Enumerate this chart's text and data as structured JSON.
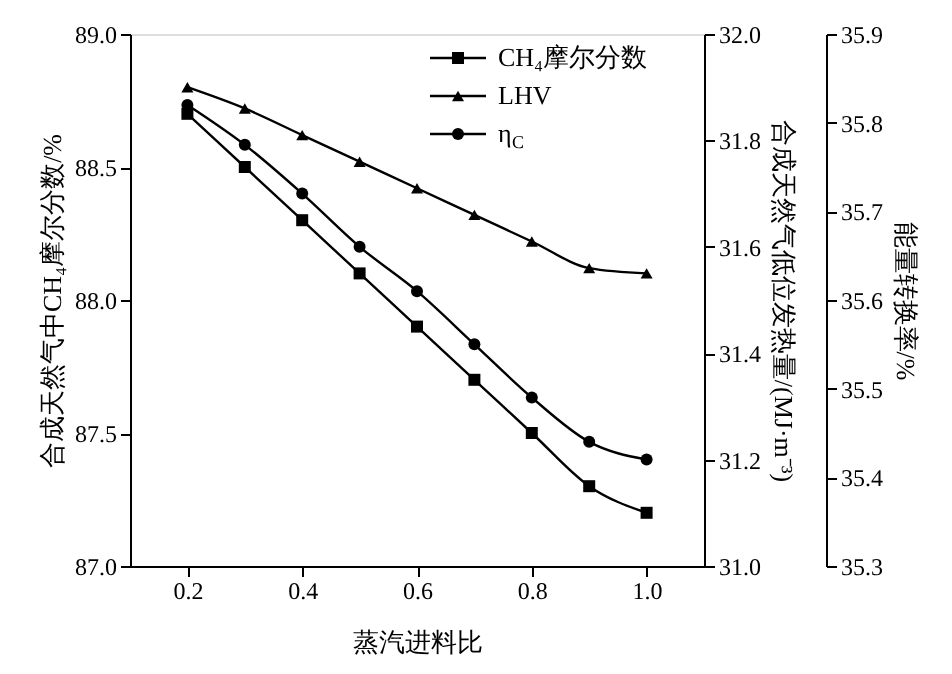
{
  "chart_data": {
    "type": "line",
    "xlabel": "蒸汽进料比",
    "ylabel": "合成天然气中CH₄摩尔分数/%",
    "y2label": "合成天然气低位发热量/(MJ·m⁻³)",
    "y3label": "能量转换率/%",
    "x": [
      0.2,
      0.3,
      0.4,
      0.5,
      0.6,
      0.7,
      0.8,
      0.9,
      1.0
    ],
    "xlim": [
      0.1,
      1.1
    ],
    "xticks": [
      {
        "value": 0.2,
        "label": "0.2"
      },
      {
        "value": 0.4,
        "label": "0.4"
      },
      {
        "value": 0.6,
        "label": "0.6"
      },
      {
        "value": 0.8,
        "label": "0.8"
      },
      {
        "value": 1.0,
        "label": "1.0"
      }
    ],
    "ylim": [
      87.0,
      89.0
    ],
    "yticks": [
      {
        "value": 87,
        "label": "87.0"
      },
      {
        "value": 87.5,
        "label": "87.5"
      },
      {
        "value": 88,
        "label": "88.0"
      },
      {
        "value": 88.5,
        "label": "88.5"
      },
      {
        "value": 89,
        "label": "89.0"
      }
    ],
    "y2lim": [
      31.0,
      32.0
    ],
    "y2ticks": [
      {
        "value": 31,
        "label": "31.0"
      },
      {
        "value": 31.2,
        "label": "31.2"
      },
      {
        "value": 31.4,
        "label": "31.4"
      },
      {
        "value": 31.6,
        "label": "31.6"
      },
      {
        "value": 31.8,
        "label": "31.8"
      },
      {
        "value": 32,
        "label": "32.0"
      }
    ],
    "y3lim": [
      35.3,
      35.9
    ],
    "y3ticks": [
      {
        "value": 35.3,
        "label": "35.3"
      },
      {
        "value": 35.4,
        "label": "35.4"
      },
      {
        "value": 35.5,
        "label": "35.5"
      },
      {
        "value": 35.6,
        "label": "35.6"
      },
      {
        "value": 35.7,
        "label": "35.7"
      },
      {
        "value": 35.8,
        "label": "35.8"
      },
      {
        "value": 35.9,
        "label": "35.9"
      }
    ],
    "grid": false,
    "legend": "top right",
    "line_style": "solid",
    "series": [
      {
        "name": "CH₄摩尔分数",
        "color": "#000000",
        "marker": "square",
        "values": [
          88.7,
          88.5,
          88.3,
          88.1,
          87.9,
          87.7,
          87.5,
          87.3,
          87.2
        ]
      },
      {
        "name": "LHV",
        "color": "#000000",
        "marker": "triangle",
        "axis": "y2",
        "values": [
          31.9,
          31.86,
          31.81,
          31.76,
          31.71,
          31.66,
          31.61,
          31.56,
          31.55
        ]
      },
      {
        "name": "η$_{C}$",
        "color": "#000000",
        "marker": "circle",
        "axis": "y3",
        "values": [
          35.82,
          35.775,
          35.72,
          35.66,
          35.61,
          35.55,
          35.49,
          35.44,
          35.42
        ]
      }
    ]
  }
}
